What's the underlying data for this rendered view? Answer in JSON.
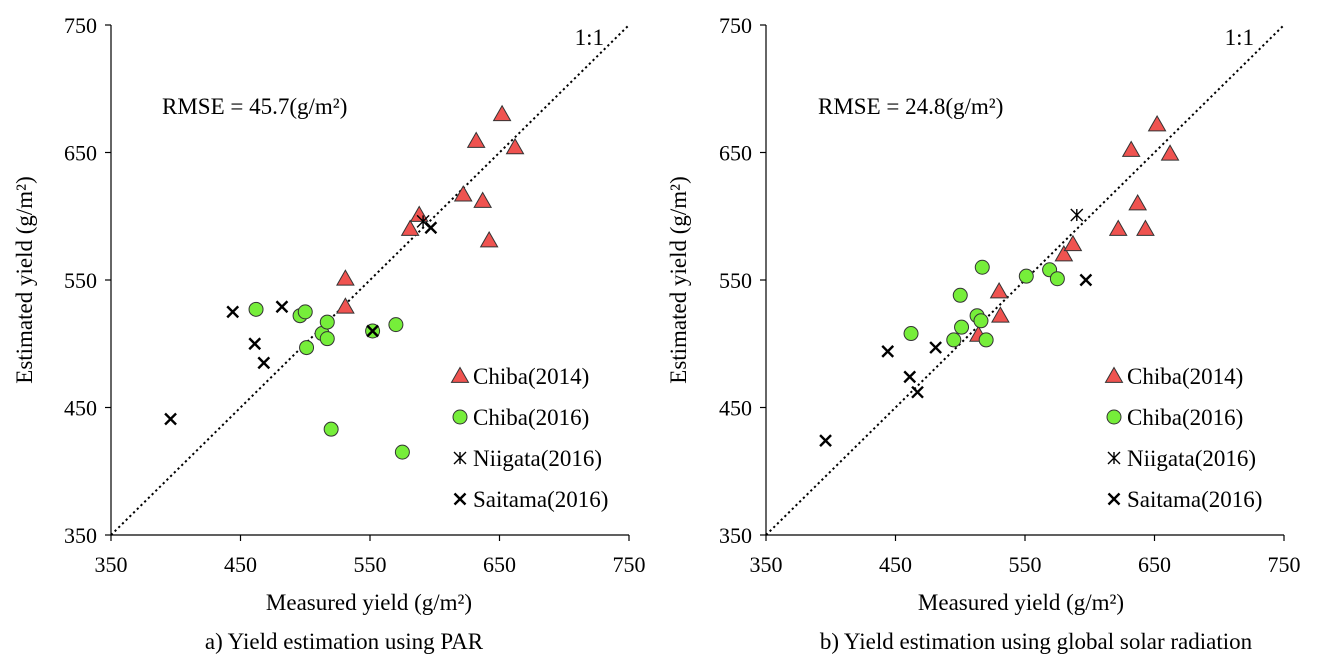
{
  "chart_data": [
    {
      "type": "scatter",
      "caption": "a) Yield estimation using PAR",
      "xlabel": "Measured yield (g/m²)",
      "ylabel": "Estimated yield (g/m²)",
      "xlim": [
        350,
        750
      ],
      "ylim": [
        350,
        750
      ],
      "xticks": [
        "350",
        "450",
        "550",
        "650",
        "750"
      ],
      "yticks": [
        "350",
        "450",
        "550",
        "650",
        "750"
      ],
      "annotation": "RMSE = 45.7(g/m²)",
      "reference_line": {
        "label": "1:1",
        "points": [
          [
            350,
            350
          ],
          [
            750,
            750
          ]
        ]
      },
      "legend_position": "bottom-right",
      "grid": false,
      "series": [
        {
          "name": "Chiba(2014)",
          "marker": "triangle",
          "color": "#ef5350",
          "points": [
            [
              531,
              551
            ],
            [
              531,
              529
            ],
            [
              581,
              590
            ],
            [
              588,
              601
            ],
            [
              622,
              617
            ],
            [
              632,
              659
            ],
            [
              637,
              612
            ],
            [
              642,
              581
            ],
            [
              652,
              680
            ],
            [
              662,
              654
            ]
          ]
        },
        {
          "name": "Chiba(2016)",
          "marker": "circle",
          "color": "#76ee3a",
          "points": [
            [
              462,
              527
            ],
            [
              496,
              522
            ],
            [
              500,
              525
            ],
            [
              501,
              497
            ],
            [
              513,
              508
            ],
            [
              517,
              517
            ],
            [
              517,
              504
            ],
            [
              520,
              433
            ],
            [
              552,
              510
            ],
            [
              570,
              515
            ],
            [
              575,
              415
            ]
          ]
        },
        {
          "name": "Niigata(2016)",
          "marker": "asterisk",
          "color": "#000000",
          "points": [
            [
              591,
              596
            ]
          ]
        },
        {
          "name": "Saitama(2016)",
          "marker": "cross",
          "color": "#000000",
          "points": [
            [
              396,
              441
            ],
            [
              444,
              525
            ],
            [
              461,
              500
            ],
            [
              468,
              485
            ],
            [
              482,
              529
            ],
            [
              552,
              510
            ],
            [
              597,
              591
            ]
          ]
        }
      ]
    },
    {
      "type": "scatter",
      "caption": "b) Yield estimation using global solar radiation",
      "xlabel": "Measured yield (g/m²)",
      "ylabel": "Estimated yield (g/m²)",
      "xlim": [
        350,
        750
      ],
      "ylim": [
        350,
        750
      ],
      "xticks": [
        "350",
        "450",
        "550",
        "650",
        "750"
      ],
      "yticks": [
        "350",
        "450",
        "550",
        "650",
        "750"
      ],
      "annotation": "RMSE = 24.8(g/m²)",
      "reference_line": {
        "label": "1:1",
        "points": [
          [
            350,
            350
          ],
          [
            750,
            750
          ]
        ]
      },
      "legend_position": "bottom-right",
      "grid": false,
      "series": [
        {
          "name": "Chiba(2014)",
          "marker": "triangle",
          "color": "#ef5350",
          "points": [
            [
              514,
              507
            ],
            [
              530,
              541
            ],
            [
              531,
              522
            ],
            [
              580,
              570
            ],
            [
              587,
              578
            ],
            [
              622,
              590
            ],
            [
              632,
              652
            ],
            [
              637,
              610
            ],
            [
              643,
              590
            ],
            [
              652,
              672
            ],
            [
              662,
              649
            ]
          ]
        },
        {
          "name": "Chiba(2016)",
          "marker": "circle",
          "color": "#76ee3a",
          "points": [
            [
              462,
              508
            ],
            [
              495,
              503
            ],
            [
              500,
              538
            ],
            [
              501,
              513
            ],
            [
              513,
              522
            ],
            [
              516,
              518
            ],
            [
              517,
              560
            ],
            [
              520,
              503
            ],
            [
              551,
              553
            ],
            [
              569,
              558
            ],
            [
              575,
              551
            ]
          ]
        },
        {
          "name": "Niigata(2016)",
          "marker": "asterisk",
          "color": "#000000",
          "points": [
            [
              590,
              601
            ]
          ]
        },
        {
          "name": "Saitama(2016)",
          "marker": "cross",
          "color": "#000000",
          "points": [
            [
              396,
              424
            ],
            [
              444,
              494
            ],
            [
              461,
              474
            ],
            [
              467,
              462
            ],
            [
              481,
              497
            ],
            [
              597,
              550
            ]
          ]
        }
      ]
    }
  ]
}
